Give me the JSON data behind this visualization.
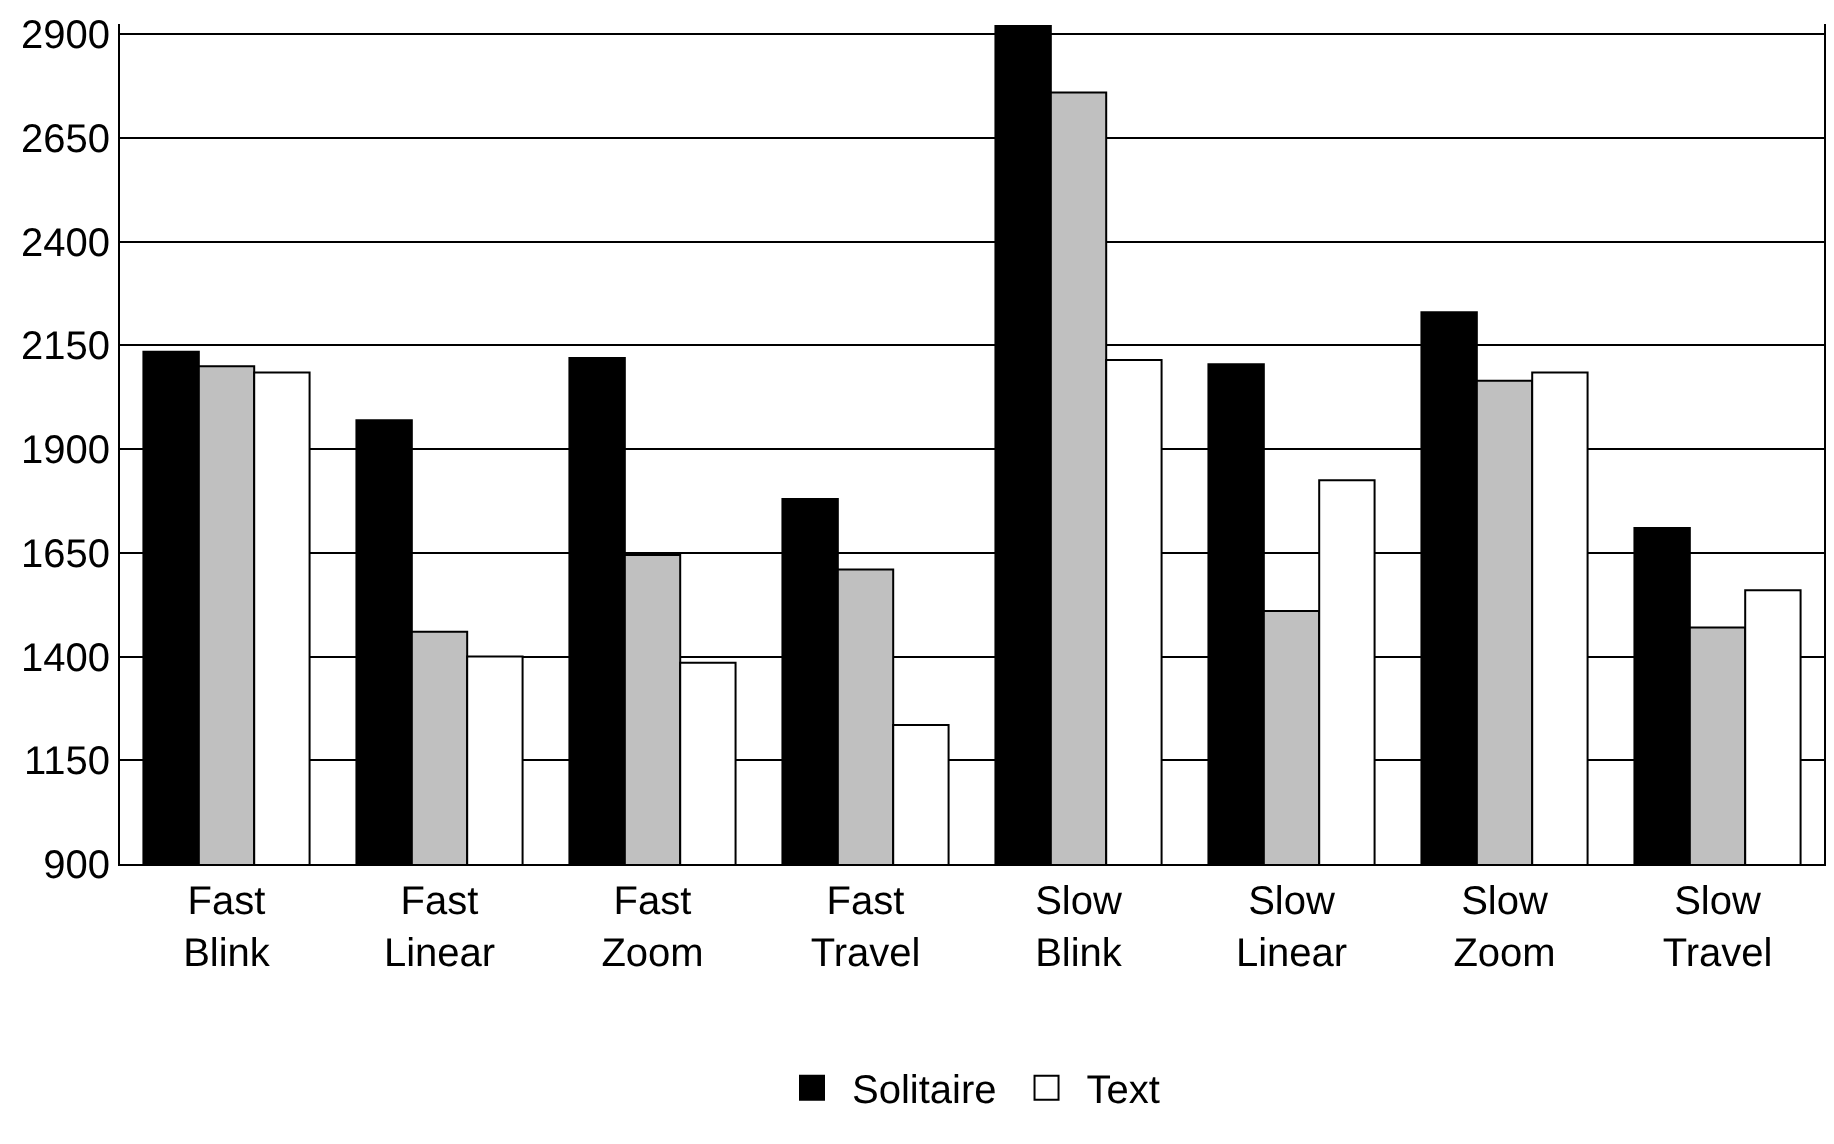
{
  "chart_data": {
    "type": "bar",
    "categories": [
      "Fast\nBlink",
      "Fast\nLinear",
      "Fast\nZoom",
      "Fast\nTravel",
      "Slow\nBlink",
      "Slow\nLinear",
      "Slow\nZoom",
      "Slow\nTravel"
    ],
    "series": [
      {
        "name": "Solitaire",
        "color": "#000000",
        "values": [
          2135,
          1970,
          2120,
          1780,
          2920,
          2105,
          2230,
          1710
        ]
      },
      {
        "color": "#c0c0c0",
        "values": [
          2100,
          1460,
          1645,
          1610,
          2760,
          1510,
          2065,
          1470
        ]
      },
      {
        "name": "Text",
        "color": "#ffffff",
        "values": [
          2085,
          1400,
          1385,
          1235,
          2115,
          1825,
          2085,
          1560
        ]
      }
    ],
    "ylim": [
      900,
      2925
    ],
    "yticks": [
      900,
      1150,
      1400,
      1650,
      1900,
      2150,
      2400,
      2650,
      2900
    ],
    "grid": "y",
    "legend": "bottom"
  }
}
